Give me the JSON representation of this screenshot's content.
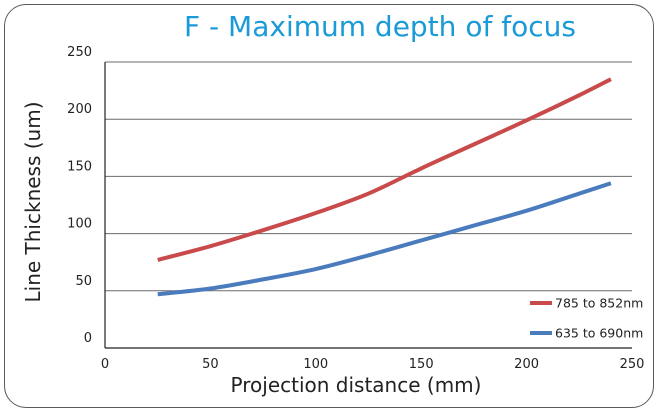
{
  "chart_data": {
    "type": "line",
    "title": "F - Maximum depth of focus",
    "xlabel": "Projection distance (mm)",
    "ylabel": "Line Thickness (um)",
    "xlim": [
      0,
      250
    ],
    "ylim": [
      0,
      250
    ],
    "xticks": [
      0,
      50,
      100,
      150,
      200,
      250
    ],
    "yticks": [
      0,
      50,
      100,
      150,
      200,
      250
    ],
    "grid": true,
    "legend_position": "bottom-right",
    "series": [
      {
        "name": "785 to 852nm",
        "color": "#c94a4a",
        "x": [
          25,
          50,
          75,
          100,
          125,
          150,
          175,
          200,
          225,
          240
        ],
        "y": [
          77,
          89,
          103,
          118,
          135,
          157,
          178,
          199,
          221,
          235
        ]
      },
      {
        "name": "635 to 690nm",
        "color": "#4a7bbd",
        "x": [
          25,
          50,
          75,
          100,
          125,
          150,
          175,
          200,
          225,
          240
        ],
        "y": [
          47,
          52,
          60,
          69,
          81,
          94,
          107,
          120,
          135,
          144
        ]
      }
    ]
  }
}
